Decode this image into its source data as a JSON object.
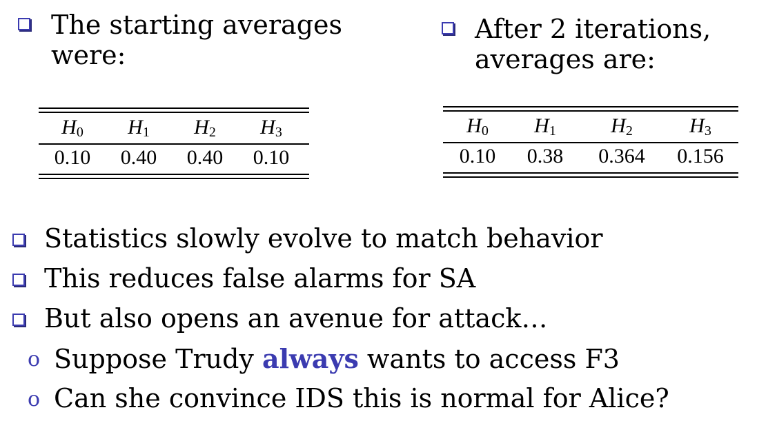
{
  "left_heading": {
    "line1": "The starting averages",
    "line2": "were:"
  },
  "right_heading": {
    "line1": "After 2 iterations,",
    "line2": "averages are:"
  },
  "table_start": {
    "headers": [
      "H",
      "H",
      "H",
      "H"
    ],
    "subs": [
      "0",
      "1",
      "2",
      "3"
    ],
    "values": [
      "0.10",
      "0.40",
      "0.40",
      "0.10"
    ]
  },
  "table_after": {
    "headers": [
      "H",
      "H",
      "H",
      "H"
    ],
    "subs": [
      "0",
      "1",
      "2",
      "3"
    ],
    "values": [
      "0.10",
      "0.38",
      "0.364",
      "0.156"
    ]
  },
  "bullets": [
    "Statistics slowly evolve to match behavior",
    "This reduces false alarms for SA",
    "But also opens an avenue for attack…"
  ],
  "sub_bullets": {
    "item1": {
      "marker": "o",
      "pre": "Suppose Trudy ",
      "emph": "always",
      "post": " wants to access F3"
    },
    "item2": {
      "marker": "o",
      "text": "Can she convince IDS this is normal for Alice?"
    }
  }
}
